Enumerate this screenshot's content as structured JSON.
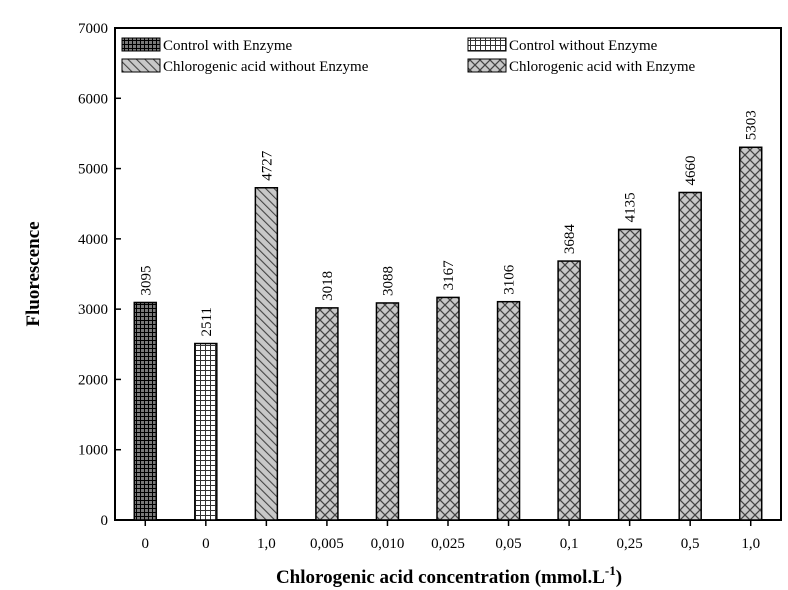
{
  "chart_data": {
    "type": "bar",
    "title": "",
    "xlabel": "Chlorogenic acid concentration (mmol.L",
    "xlabel_superscript": "-1",
    "xlabel_close": ")",
    "ylabel": "Fluorescence",
    "ylim": [
      0,
      7000
    ],
    "yticks": [
      0,
      1000,
      2000,
      3000,
      4000,
      5000,
      6000,
      7000
    ],
    "grid": false,
    "legend_position": "top",
    "categories": [
      "0",
      "0",
      "1,0",
      "0,005",
      "0,010",
      "0,025",
      "0,05",
      "0,1",
      "0,25",
      "0,5",
      "1,0"
    ],
    "values": [
      3095,
      2511,
      4727,
      3018,
      3088,
      3167,
      3106,
      3684,
      4135,
      4660,
      5303
    ],
    "bar_series": [
      0,
      1,
      2,
      3,
      3,
      3,
      3,
      3,
      3,
      3,
      3
    ],
    "series": [
      {
        "name": "Control with Enzyme",
        "pattern": "dense-grid"
      },
      {
        "name": "Control without Enzyme",
        "pattern": "grid"
      },
      {
        "name": "Chlorogenic acid without Enzyme",
        "pattern": "diagonal"
      },
      {
        "name": "Chlorogenic acid with Enzyme",
        "pattern": "crosshatch"
      }
    ],
    "bar_fill_color": "#c8c8c8",
    "edge_color": "#000000"
  }
}
